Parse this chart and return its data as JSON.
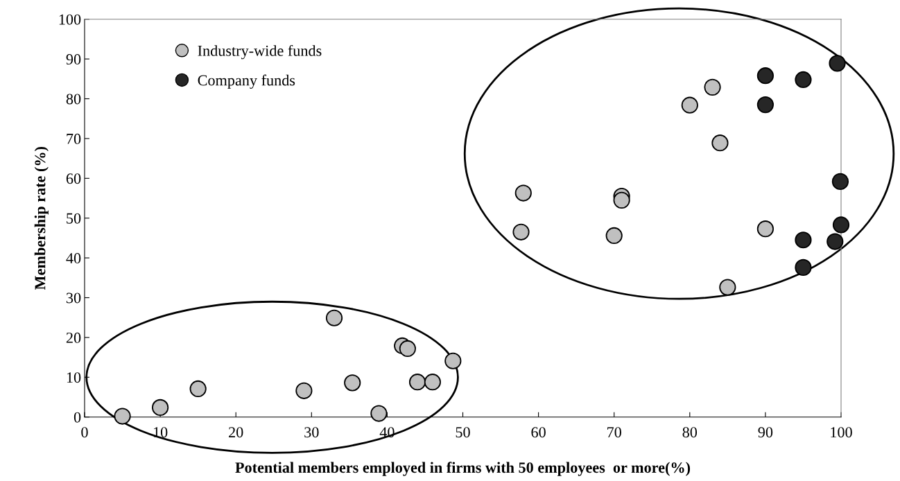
{
  "chart_data": {
    "type": "scatter",
    "xlabel": "Potential members employed in firms with 50 employees  or more(%)",
    "ylabel": "Membership rate (%)",
    "xlim": [
      0,
      100
    ],
    "ylim": [
      0,
      100
    ],
    "xticks": [
      0,
      10,
      20,
      30,
      40,
      50,
      60,
      70,
      80,
      90,
      100
    ],
    "yticks": [
      0,
      10,
      20,
      30,
      40,
      50,
      60,
      70,
      80,
      90,
      100
    ],
    "grid": false,
    "legend": "top left",
    "marker": "circle",
    "series": [
      {
        "name": "Industry-wide funds",
        "color": "#c0c0c0",
        "x": [
          5,
          10,
          15,
          29,
          33,
          35.4,
          38.9,
          42,
          42.7,
          44,
          46,
          48.7,
          58,
          57.7,
          71,
          71,
          70,
          83,
          80,
          84,
          90,
          85
        ],
        "values": [
          0.2,
          2.4,
          7.1,
          6.6,
          24.9,
          8.6,
          0.9,
          17.9,
          17.2,
          8.8,
          8.8,
          14.1,
          56.3,
          46.5,
          55.5,
          54.5,
          45.6,
          82.9,
          78.4,
          68.9,
          47.3,
          32.6
        ]
      },
      {
        "name": "Company funds",
        "color": "#262626",
        "x": [
          90,
          95,
          99.5,
          90,
          99.9,
          100,
          95,
          99.2,
          95
        ],
        "values": [
          85.8,
          84.8,
          88.9,
          78.5,
          59.2,
          48.3,
          44.5,
          44.1,
          37.6
        ]
      }
    ]
  }
}
